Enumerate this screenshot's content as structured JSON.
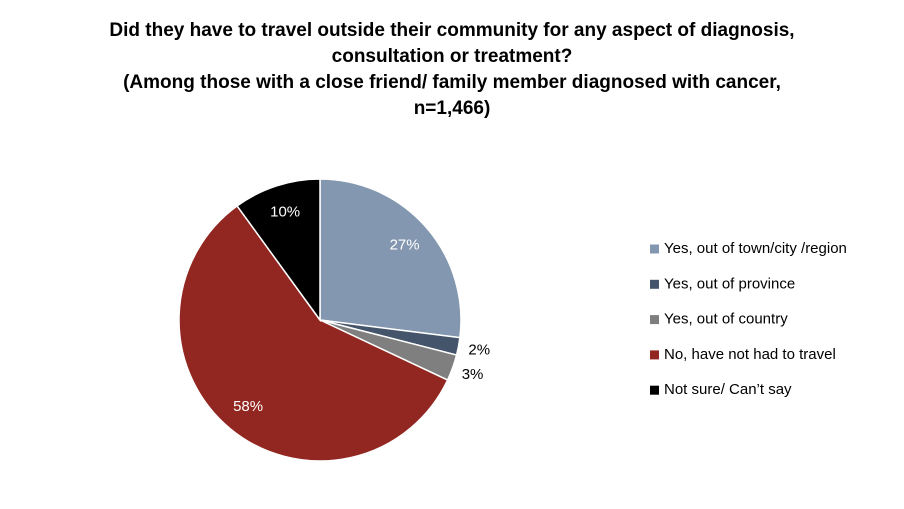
{
  "chart_data": {
    "type": "pie",
    "title": "Did they have to travel outside their community for any aspect of diagnosis, consultation or treatment?",
    "subtitle": "(Among those with a close friend/ family member diagnosed with cancer, n=1,466)",
    "categories": [
      "Yes, out of town/city /region",
      "Yes, out of province",
      "Yes, out of country",
      "No, have not had to travel",
      "Not sure/ Can’t say"
    ],
    "values": [
      27,
      2,
      3,
      58,
      10
    ],
    "value_labels": [
      "27%",
      "2%",
      "3%",
      "58%",
      "10%"
    ],
    "colors": [
      "#8497b0",
      "#44546a",
      "#7f7f7f",
      "#922620",
      "#000000"
    ],
    "legend": "right"
  }
}
